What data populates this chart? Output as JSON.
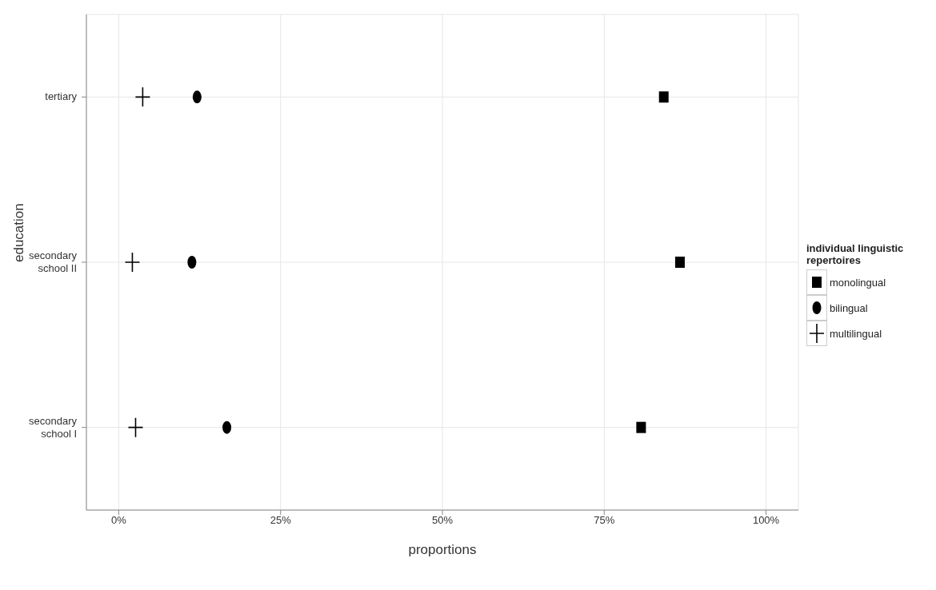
{
  "chart_data": {
    "type": "scatter",
    "orientation": "horizontal",
    "xlabel": "proportions",
    "ylabel": "education",
    "legend_title": "individual linguistic repertoires",
    "categories": [
      "tertiary",
      "secondary school II",
      "secondary school I"
    ],
    "series": [
      {
        "name": "monolingual",
        "color": "#000000",
        "marker": "square",
        "values": [
          84.2,
          86.7,
          80.7
        ]
      },
      {
        "name": "bilingual",
        "color": "#000000",
        "marker": "circle",
        "values": [
          12.1,
          11.3,
          16.7
        ]
      },
      {
        "name": "multilingual",
        "color": "#000000",
        "marker": "cross",
        "values": [
          3.7,
          2.1,
          2.6
        ]
      }
    ],
    "xlim": [
      -5,
      105
    ],
    "xticks": [
      {
        "value": 0,
        "label": "0%"
      },
      {
        "value": 25,
        "label": "25%"
      },
      {
        "value": 50,
        "label": "50%"
      },
      {
        "value": 75,
        "label": "75%"
      },
      {
        "value": 100,
        "label": "100%"
      }
    ],
    "grid": true,
    "legend": "right"
  }
}
